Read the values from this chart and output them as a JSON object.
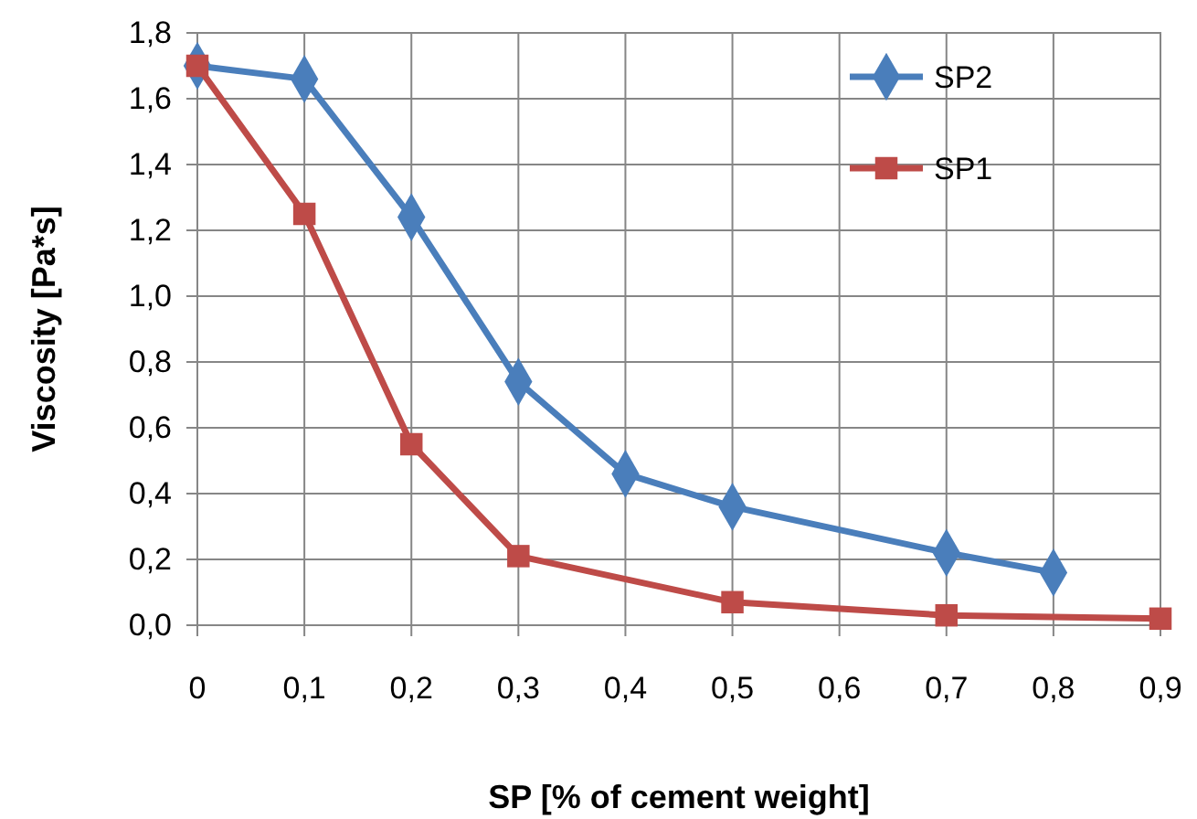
{
  "chart_data": {
    "type": "line",
    "xlabel": "SP [% of cement weight]",
    "ylabel": "Viscosity [Pa*s]",
    "xlim": [
      0,
      0.9
    ],
    "xticks": [
      0,
      {
        "value": 0.1,
        "label": "0,1"
      },
      {
        "value": 0.2,
        "label": "0,2"
      },
      {
        "value": 0.3,
        "label": "0,3"
      },
      {
        "value": 0.4,
        "label": "0,4"
      },
      {
        "value": 0.5,
        "label": "0,5"
      },
      {
        "value": 0.6,
        "label": "0,6"
      },
      {
        "value": 0.7,
        "label": "0,7"
      },
      {
        "value": 0.8,
        "label": "0,8"
      },
      {
        "value": 0.9,
        "label": "0,9"
      }
    ],
    "ylim": [
      0,
      1.8
    ],
    "yticks": [
      {
        "value": 0,
        "label": "0,0"
      },
      {
        "value": 0.2,
        "label": "0,2"
      },
      {
        "value": 0.4,
        "label": "0,4"
      },
      {
        "value": 0.6,
        "label": "0,6"
      },
      {
        "value": 0.8,
        "label": "0,8"
      },
      {
        "value": 1,
        "label": "1,0"
      },
      {
        "value": 1.2,
        "label": "1,2"
      },
      {
        "value": 1.4,
        "label": "1,4"
      },
      {
        "value": 1.6,
        "label": "1,6"
      },
      {
        "value": 1.8,
        "label": "1,8"
      }
    ],
    "grid": true,
    "legend": "top right",
    "line_style": "solid",
    "series": [
      {
        "name": "SP2",
        "color": "#4a7ebb",
        "marker": "diamond",
        "x": [
          0,
          0.1,
          0.2,
          0.3,
          0.4,
          0.5,
          0.7,
          0.8
        ],
        "values": [
          1.7,
          1.66,
          1.24,
          0.74,
          0.46,
          0.36,
          0.22,
          0.16
        ]
      },
      {
        "name": "SP1",
        "color": "#be4b48",
        "marker": "square",
        "x": [
          0,
          0.1,
          0.2,
          0.3,
          0.5,
          0.7,
          0.9
        ],
        "values": [
          1.7,
          1.25,
          0.55,
          0.21,
          0.07,
          0.03,
          0.02
        ]
      }
    ]
  }
}
